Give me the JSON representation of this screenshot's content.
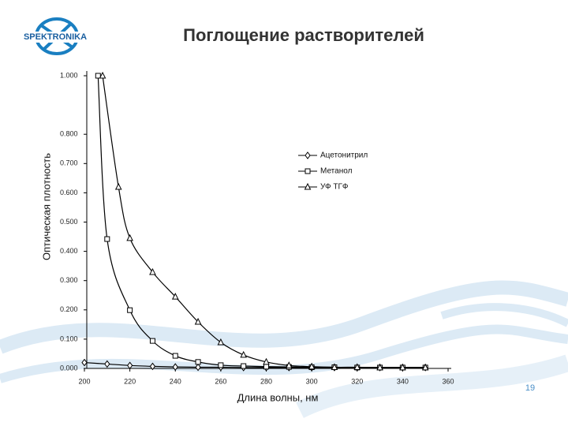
{
  "logo": "SPEKTRONIKA",
  "page_number": "19",
  "chart_data": {
    "type": "line",
    "title": "Поглощение растворителей",
    "x_label": "Длина волны, нм",
    "y_label": "Оптическая плотность",
    "xlim": [
      200,
      360
    ],
    "xticks": [
      200,
      220,
      240,
      260,
      280,
      300,
      320,
      340,
      360
    ],
    "ylim": [
      0,
      1
    ],
    "yticks": [
      {
        "value": 0,
        "label": "0.000"
      },
      {
        "value": 0.1,
        "label": "0.100"
      },
      {
        "value": 0.2,
        "label": "0.200"
      },
      {
        "value": 0.3,
        "label": "0.300"
      },
      {
        "value": 0.4,
        "label": "0.400"
      },
      {
        "value": 0.5,
        "label": "0.500"
      },
      {
        "value": 0.6,
        "label": "0.600"
      },
      {
        "value": 0.7,
        "label": "0.700"
      },
      {
        "value": 0.8,
        "label": "0.800"
      },
      {
        "value": 1,
        "label": "1.000"
      }
    ],
    "legend": "right",
    "series": [
      {
        "name": "Ацетонитрил",
        "color": "#000000",
        "marker": "diamond",
        "x": [
          200,
          210,
          220,
          230,
          240,
          250,
          260,
          270,
          280,
          290,
          300,
          310,
          320,
          330,
          340,
          350
        ],
        "values": [
          0.02,
          0.015,
          0.01,
          0.007,
          0.005,
          0.004,
          0.004,
          0.003,
          0.003,
          0.003,
          0.003,
          0.003,
          0.003,
          0.003,
          0.003,
          0.003
        ]
      },
      {
        "name": "Метанол",
        "color": "#000000",
        "marker": "square",
        "x": [
          206,
          210,
          220,
          230,
          240,
          250,
          260,
          270,
          280,
          290,
          300,
          310,
          320,
          330,
          340,
          350
        ],
        "values": [
          1,
          0.442,
          0.199,
          0.094,
          0.043,
          0.022,
          0.011,
          0.008,
          0.006,
          0.005,
          0.004,
          0.004,
          0.003,
          0.003,
          0.003,
          0.003
        ]
      },
      {
        "name": "УФ ТГФ",
        "color": "#000000",
        "marker": "triangle",
        "x": [
          208,
          215,
          220,
          230,
          240,
          250,
          260,
          270,
          280,
          290,
          300,
          310,
          320,
          330,
          340,
          350
        ],
        "values": [
          1,
          0.62,
          0.445,
          0.329,
          0.245,
          0.159,
          0.089,
          0.046,
          0.022,
          0.01,
          0.006,
          0.004,
          0.004,
          0.003,
          0.003,
          0.003
        ]
      }
    ]
  }
}
